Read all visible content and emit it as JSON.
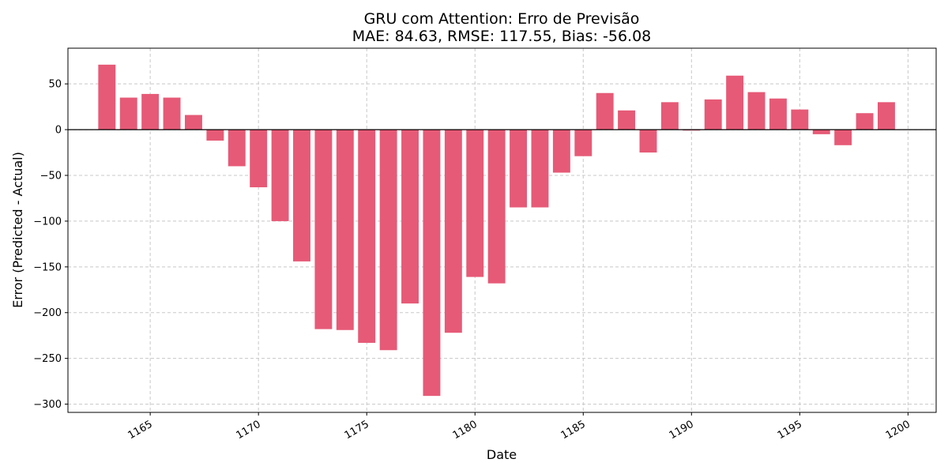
{
  "chart_data": {
    "type": "bar",
    "title": "GRU com Attention: Erro de Previsão",
    "subtitle": "MAE: 84.63, RMSE: 117.55, Bias: -56.08",
    "xlabel": "Date",
    "ylabel": "Error (Predicted - Actual)",
    "x": [
      1163,
      1164,
      1165,
      1166,
      1167,
      1168,
      1169,
      1170,
      1171,
      1172,
      1173,
      1174,
      1175,
      1176,
      1177,
      1178,
      1179,
      1180,
      1181,
      1182,
      1183,
      1184,
      1185,
      1186,
      1187,
      1188,
      1189,
      1190,
      1191,
      1192,
      1193,
      1194,
      1195,
      1196,
      1197,
      1198,
      1199
    ],
    "values": [
      71,
      35,
      39,
      35,
      16,
      -12,
      -40,
      -63,
      -100,
      -144,
      -218,
      -219,
      -233,
      -241,
      -190,
      -291,
      -222,
      -161,
      -168,
      -85,
      -85,
      -47,
      -29,
      40,
      21,
      -25,
      30,
      -1,
      33,
      59,
      41,
      34,
      22,
      -5,
      -17,
      18,
      30
    ],
    "xlim": [
      1161.2,
      1201.3
    ],
    "ylim": [
      -309,
      89
    ],
    "xticks": [
      1165,
      1170,
      1175,
      1180,
      1185,
      1190,
      1195,
      1200
    ],
    "yticks": [
      50,
      0,
      -50,
      -100,
      -150,
      -200,
      -250,
      -300
    ],
    "ytick_labels": [
      "50",
      "0",
      "−50",
      "−100",
      "−150",
      "−200",
      "−250",
      "−300"
    ],
    "grid": true,
    "bar_color": "#e65a77",
    "zero_line_color": "#000000",
    "grid_color": "#c8c8c8"
  }
}
